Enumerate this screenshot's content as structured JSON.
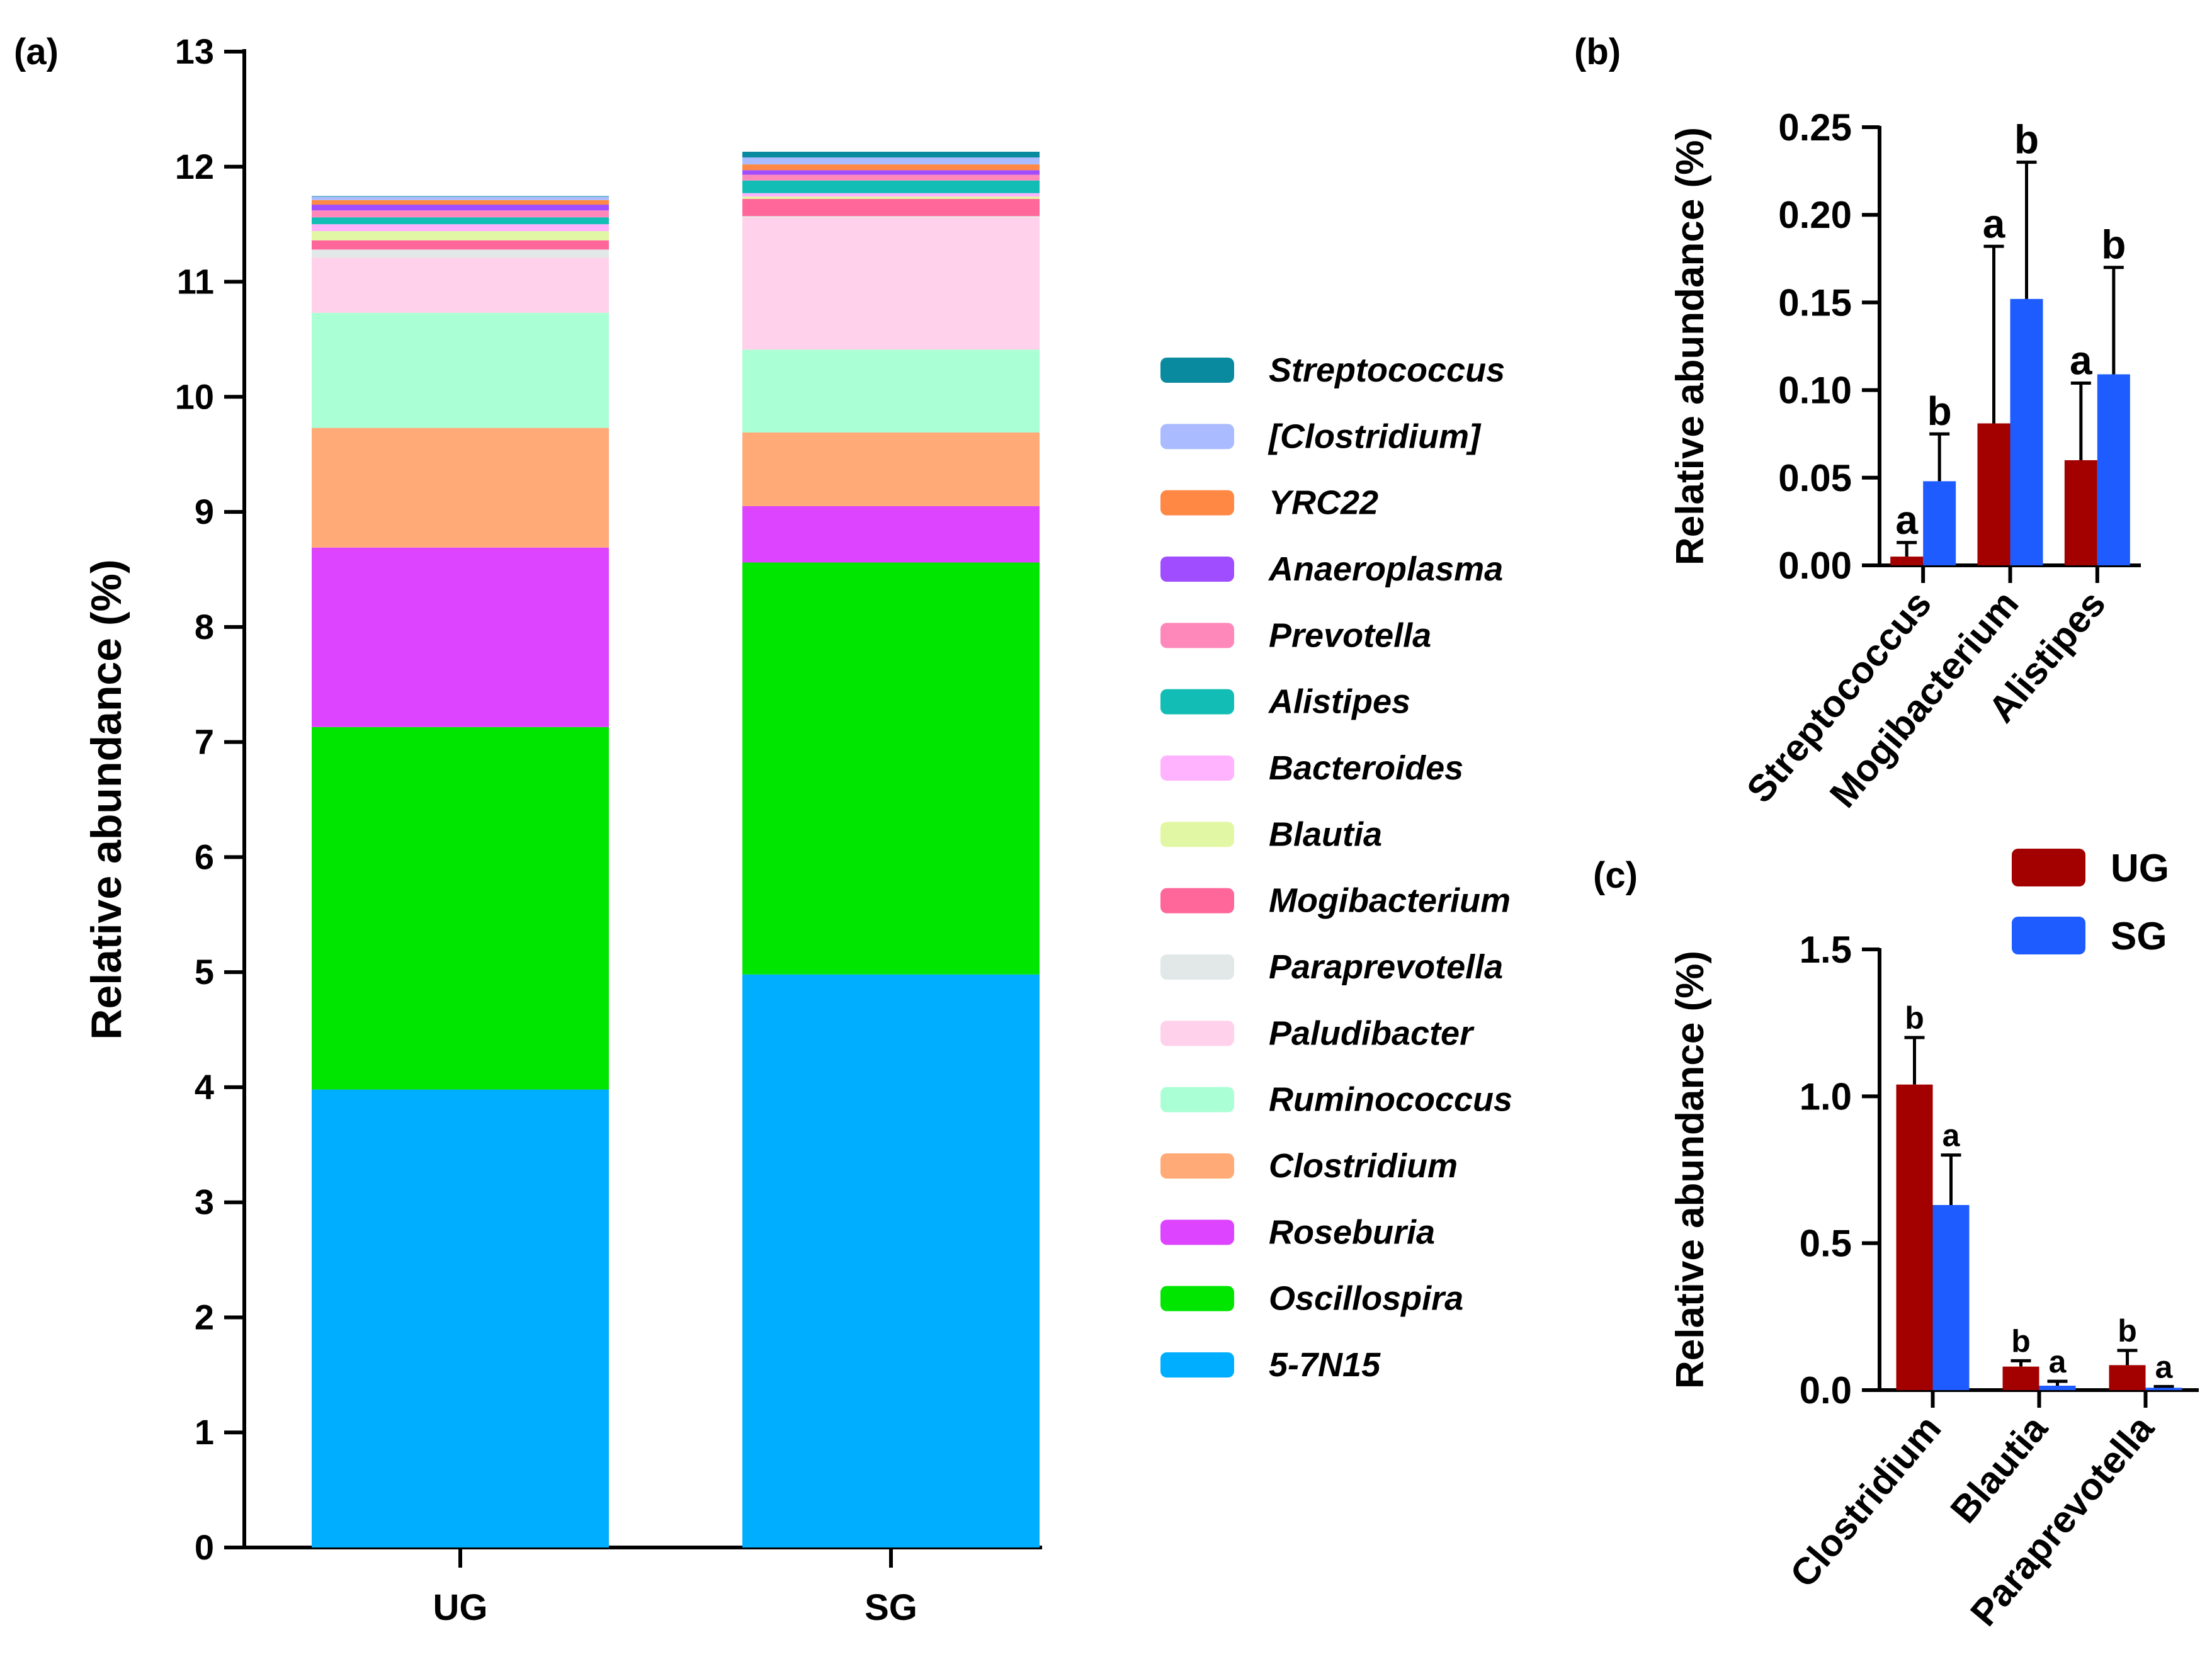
{
  "panels": {
    "a": {
      "label": "(a)"
    },
    "b": {
      "label": "(b)"
    },
    "c": {
      "label": "(c)"
    }
  },
  "chart_data": [
    {
      "id": "a",
      "type": "bar",
      "stacked": true,
      "categories": [
        "UG",
        "SG"
      ],
      "ylabel": "Relative abundance (%)",
      "ylim": [
        0,
        13
      ],
      "yticks": [
        0,
        1,
        2,
        3,
        4,
        5,
        6,
        7,
        8,
        9,
        10,
        11,
        12,
        13
      ],
      "series": [
        {
          "name": "5-7N15",
          "color": "#00aeff",
          "values": [
            3.98,
            4.98
          ]
        },
        {
          "name": "Oscillospira",
          "color": "#00e600",
          "values": [
            3.15,
            3.58
          ]
        },
        {
          "name": "Roseburia",
          "color": "#dd44ff",
          "values": [
            1.56,
            0.49
          ]
        },
        {
          "name": "Clostridium",
          "color": "#ffaa77",
          "values": [
            1.04,
            0.64
          ]
        },
        {
          "name": "Ruminococcus",
          "color": "#aaffd4",
          "values": [
            1.0,
            0.72
          ]
        },
        {
          "name": "Paludibacter",
          "color": "#ffd1ea",
          "values": [
            0.48,
            1.15
          ]
        },
        {
          "name": "Paraprevotella",
          "color": "#e2e8e8",
          "values": [
            0.07,
            0.01
          ]
        },
        {
          "name": "Mogibacterium",
          "color": "#ff6699",
          "values": [
            0.08,
            0.15
          ]
        },
        {
          "name": "Blautia",
          "color": "#e2f7a3",
          "values": [
            0.08,
            0.02
          ]
        },
        {
          "name": "Bacteroides",
          "color": "#ffb3ff",
          "values": [
            0.06,
            0.03
          ]
        },
        {
          "name": "Alistipes",
          "color": "#12bdb5",
          "values": [
            0.06,
            0.11
          ]
        },
        {
          "name": "Prevotella",
          "color": "#ff88bb",
          "values": [
            0.06,
            0.05
          ]
        },
        {
          "name": "Anaeroplasma",
          "color": "#9f4dff",
          "values": [
            0.05,
            0.04
          ]
        },
        {
          "name": "YRC22",
          "color": "#ff8844",
          "values": [
            0.04,
            0.05
          ]
        },
        {
          "name": "[Clostridium]",
          "color": "#aabbff",
          "values": [
            0.03,
            0.06
          ]
        },
        {
          "name": "Streptococcus",
          "color": "#0a8a9e",
          "values": [
            0.005,
            0.05
          ]
        }
      ]
    },
    {
      "id": "b",
      "type": "bar",
      "categories": [
        "Streptococcus",
        "Mogibacterium",
        "Alistipes"
      ],
      "ylabel": "Relative abundance (%)",
      "ylim": [
        0,
        0.25
      ],
      "yticks": [
        "0.00",
        "0.05",
        "0.10",
        "0.15",
        "0.20",
        "0.25"
      ],
      "series": [
        {
          "name": "UG",
          "color": "#a30000",
          "values": [
            0.005,
            0.081,
            0.06
          ],
          "errors": [
            0.008,
            0.101,
            0.044
          ],
          "letters": [
            "a",
            "a",
            "a"
          ]
        },
        {
          "name": "SG",
          "color": "#1f5cff",
          "values": [
            0.048,
            0.152,
            0.109
          ],
          "errors": [
            0.027,
            0.078,
            0.061
          ],
          "letters": [
            "b",
            "b",
            "b"
          ]
        }
      ]
    },
    {
      "id": "c",
      "type": "bar",
      "categories": [
        "Clostridium",
        "Blautia",
        "Paraprevotella"
      ],
      "ylabel": "Relative abundance (%)",
      "ylim": [
        0,
        1.5
      ],
      "yticks": [
        "0.0",
        "0.5",
        "1.0",
        "1.5"
      ],
      "legend": {
        "position": "top-right"
      },
      "series": [
        {
          "name": "UG",
          "color": "#a30000",
          "values": [
            1.04,
            0.08,
            0.085
          ],
          "errors": [
            0.16,
            0.02,
            0.05
          ],
          "letters": [
            "b",
            "b",
            "b"
          ]
        },
        {
          "name": "SG",
          "color": "#1f5cff",
          "values": [
            0.63,
            0.015,
            0.008
          ],
          "errors": [
            0.17,
            0.015,
            0.004
          ],
          "letters": [
            "a",
            "a",
            "a"
          ]
        }
      ]
    }
  ]
}
